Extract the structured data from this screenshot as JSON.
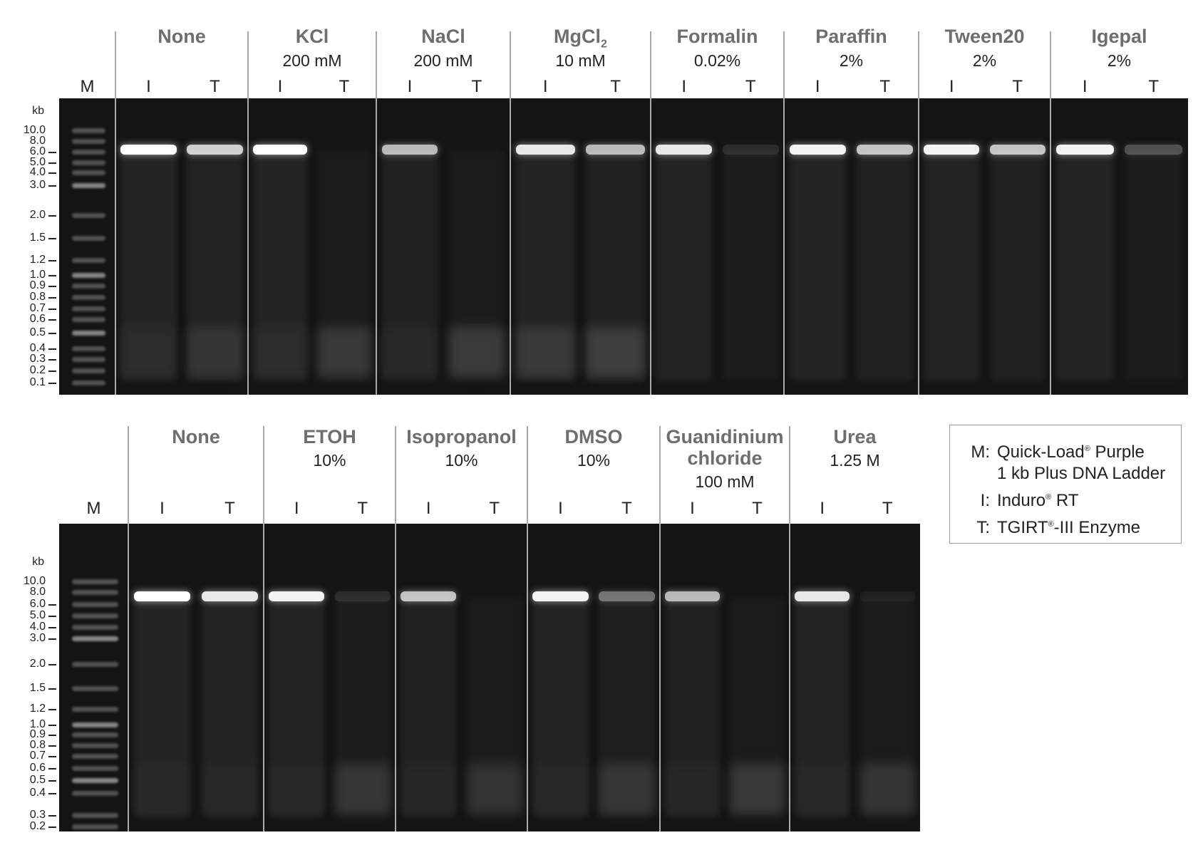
{
  "panels": [
    {
      "marker_label": "M",
      "kb_label": "kb",
      "ladder": [
        "10.0",
        "8.0",
        "6.0",
        "5.0",
        "4.0",
        "3.0",
        "2.0",
        "1.5",
        "1.2",
        "1.0",
        "0.9",
        "0.8",
        "0.7",
        "0.6",
        "0.5",
        "0.4",
        "0.3",
        "0.2",
        "0.1"
      ],
      "conditions": [
        {
          "name": "None",
          "conc": "",
          "lanes": [
            {
              "label": "I",
              "band": 1.0,
              "low": 0.15
            },
            {
              "label": "T",
              "band": 0.8,
              "low": 0.35
            }
          ]
        },
        {
          "name": "KCl",
          "conc": "200 mM",
          "lanes": [
            {
              "label": "I",
              "band": 1.0,
              "low": 0.15
            },
            {
              "label": "T",
              "band": 0.0,
              "low": 0.5
            }
          ]
        },
        {
          "name": "NaCl",
          "conc": "200 mM",
          "lanes": [
            {
              "label": "I",
              "band": 0.7,
              "low": 0.15
            },
            {
              "label": "T",
              "band": 0.0,
              "low": 0.55
            }
          ]
        },
        {
          "name": "MgCl",
          "name_sub": "2",
          "conc": "10 mM",
          "lanes": [
            {
              "label": "I",
              "band": 0.9,
              "low": 0.4
            },
            {
              "label": "T",
              "band": 0.7,
              "low": 0.5
            }
          ]
        },
        {
          "name": "Formalin",
          "conc": "0.02%",
          "lanes": [
            {
              "label": "I",
              "band": 0.9,
              "low": 0
            },
            {
              "label": "T",
              "band": 0.1,
              "low": 0
            }
          ]
        },
        {
          "name": "Paraffin",
          "conc": "2%",
          "lanes": [
            {
              "label": "I",
              "band": 0.95,
              "low": 0
            },
            {
              "label": "T",
              "band": 0.75,
              "low": 0
            }
          ]
        },
        {
          "name": "Tween20",
          "conc": "2%",
          "lanes": [
            {
              "label": "I",
              "band": 0.95,
              "low": 0
            },
            {
              "label": "T",
              "band": 0.75,
              "low": 0
            }
          ]
        },
        {
          "name": "Igepal",
          "conc": "2%",
          "lanes": [
            {
              "label": "I",
              "band": 0.95,
              "low": 0
            },
            {
              "label": "T",
              "band": 0.25,
              "low": 0
            }
          ]
        }
      ]
    },
    {
      "marker_label": "M",
      "kb_label": "kb",
      "ladder": [
        "10.0",
        "8.0",
        "6.0",
        "5.0",
        "4.0",
        "3.0",
        "2.0",
        "1.5",
        "1.2",
        "1.0",
        "0.9",
        "0.8",
        "0.7",
        "0.6",
        "0.5",
        "0.4",
        "0.3",
        "0.2"
      ],
      "conditions": [
        {
          "name": "None",
          "conc": "",
          "lanes": [
            {
              "label": "I",
              "band": 1.0,
              "low": 0.1
            },
            {
              "label": "T",
              "band": 0.9,
              "low": 0.1
            }
          ]
        },
        {
          "name": "ETOH",
          "conc": "10%",
          "lanes": [
            {
              "label": "I",
              "band": 0.95,
              "low": 0.1
            },
            {
              "label": "T",
              "band": 0.1,
              "low": 0.45
            }
          ]
        },
        {
          "name": "Isopropanol",
          "conc": "10%",
          "lanes": [
            {
              "label": "I",
              "band": 0.75,
              "low": 0.1
            },
            {
              "label": "T",
              "band": 0.0,
              "low": 0.4
            }
          ]
        },
        {
          "name": "DMSO",
          "conc": "10%",
          "lanes": [
            {
              "label": "I",
              "band": 0.95,
              "low": 0.1
            },
            {
              "label": "T",
              "band": 0.4,
              "low": 0.4
            }
          ]
        },
        {
          "name": "Guanidinium chloride",
          "conc": "100 mM",
          "lanes": [
            {
              "label": "I",
              "band": 0.7,
              "low": 0.1
            },
            {
              "label": "T",
              "band": 0.0,
              "low": 0.5
            }
          ]
        },
        {
          "name": "Urea",
          "conc": "1.25 M",
          "lanes": [
            {
              "label": "I",
              "band": 0.9,
              "low": 0.1
            },
            {
              "label": "T",
              "band": 0.05,
              "low": 0.45
            }
          ]
        }
      ]
    }
  ],
  "legend": {
    "items": [
      {
        "key": "M:",
        "text": "Quick-Load",
        "sup": "®",
        "text2": " Purple",
        "line2": "1 kb Plus DNA Ladder"
      },
      {
        "key": "I:",
        "text": "Induro",
        "sup": "®",
        "text2": " RT"
      },
      {
        "key": "T:",
        "text": "TGIRT",
        "sup": "®",
        "text2": "-III Enzyme"
      }
    ]
  },
  "colors": {
    "condition_title": "#6e6e6e",
    "gel_background": "#141414",
    "divider": "#aaaaaa"
  }
}
